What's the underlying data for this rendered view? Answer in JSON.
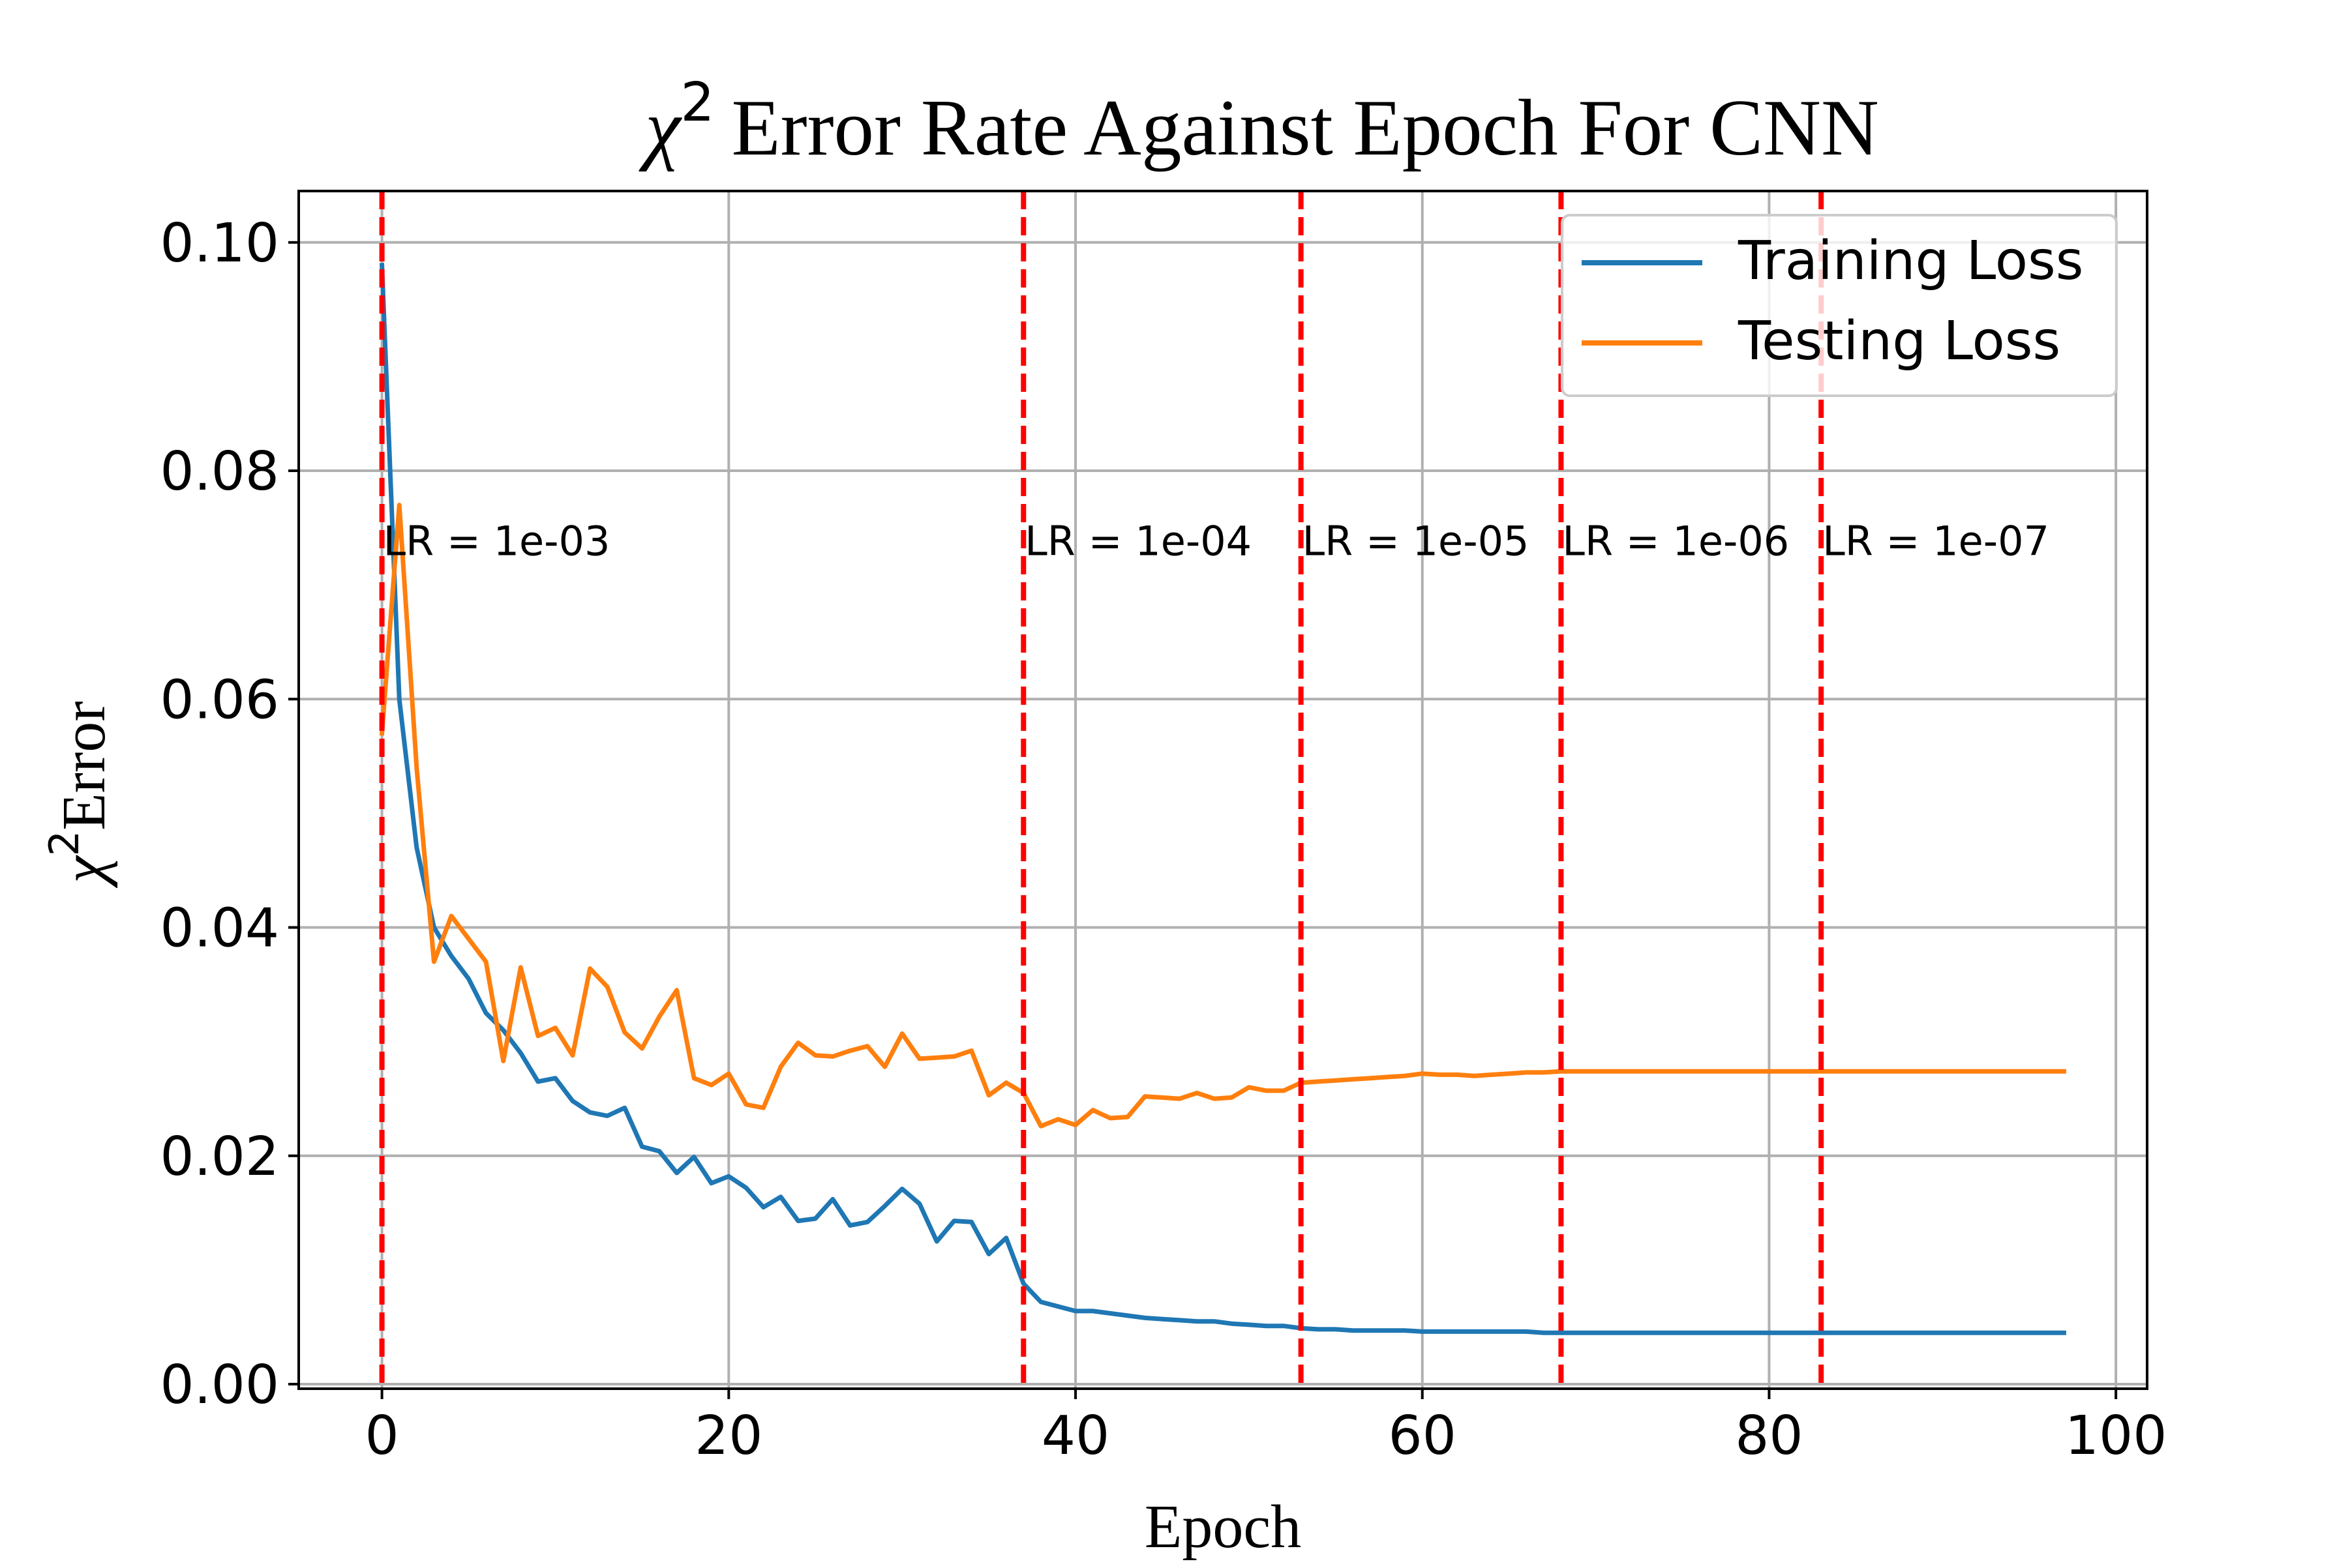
{
  "chart_data": {
    "type": "line",
    "title_symbol": "χ",
    "title_superscript": "2",
    "title_text": "Error Rate Against Epoch For CNN",
    "xlabel": "Epoch",
    "ylabel_symbol": "χ",
    "ylabel_superscript": "2",
    "ylabel_text": "Error",
    "xlim": [
      -4.8,
      101.8
    ],
    "ylim": [
      -0.0004,
      0.1045
    ],
    "xticks": [
      0,
      20,
      40,
      60,
      80,
      100
    ],
    "xtick_labels": [
      "0",
      "20",
      "40",
      "60",
      "80",
      "100"
    ],
    "yticks": [
      0.0,
      0.02,
      0.04,
      0.06,
      0.08,
      0.1
    ],
    "ytick_labels": [
      "0.00",
      "0.02",
      "0.04",
      "0.06",
      "0.08",
      "0.10"
    ],
    "grid": true,
    "legend_position": "upper right",
    "x": [
      0,
      1,
      2,
      3,
      4,
      5,
      6,
      7,
      8,
      9,
      10,
      11,
      12,
      13,
      14,
      15,
      16,
      17,
      18,
      19,
      20,
      21,
      22,
      23,
      24,
      25,
      26,
      27,
      28,
      29,
      30,
      31,
      32,
      33,
      34,
      35,
      36,
      37,
      38,
      39,
      40,
      41,
      42,
      43,
      44,
      45,
      46,
      47,
      48,
      49,
      50,
      51,
      52,
      53,
      54,
      55,
      56,
      57,
      58,
      59,
      60,
      61,
      62,
      63,
      64,
      65,
      66,
      67,
      68,
      69,
      70,
      71,
      72,
      73,
      74,
      75,
      76,
      77,
      78,
      79,
      80,
      81,
      82,
      83,
      84,
      85,
      86,
      87,
      88,
      89,
      90,
      91,
      92,
      93,
      94,
      95,
      96,
      97
    ],
    "series": [
      {
        "name": "Training Loss",
        "color": "#1f77b4",
        "values": [
          0.098,
          0.06,
          0.047,
          0.04,
          0.0375,
          0.0355,
          0.0325,
          0.031,
          0.029,
          0.0265,
          0.0268,
          0.0248,
          0.0238,
          0.0235,
          0.0242,
          0.0208,
          0.0204,
          0.0185,
          0.0199,
          0.0176,
          0.0182,
          0.0172,
          0.0155,
          0.0164,
          0.0143,
          0.0145,
          0.0162,
          0.0139,
          0.0142,
          0.0156,
          0.0171,
          0.0158,
          0.0125,
          0.0143,
          0.0142,
          0.0114,
          0.0128,
          0.0088,
          0.0072,
          0.0068,
          0.0064,
          0.0064,
          0.0062,
          0.006,
          0.0058,
          0.0057,
          0.0056,
          0.0055,
          0.0055,
          0.0053,
          0.0052,
          0.0051,
          0.0051,
          0.0049,
          0.0048,
          0.0048,
          0.0047,
          0.0047,
          0.0047,
          0.0047,
          0.0046,
          0.0046,
          0.0046,
          0.0046,
          0.0046,
          0.0046,
          0.0046,
          0.0045,
          0.0045,
          0.0045,
          0.0045,
          0.0045,
          0.0045,
          0.0045,
          0.0045,
          0.0045,
          0.0045,
          0.0045,
          0.0045,
          0.0045,
          0.0045,
          0.0045,
          0.0045,
          0.0045,
          0.0045,
          0.0045,
          0.0045,
          0.0045,
          0.0045,
          0.0045,
          0.0045,
          0.0045,
          0.0045,
          0.0045,
          0.0045,
          0.0045,
          0.0045,
          0.0045
        ]
      },
      {
        "name": "Testing Loss",
        "color": "#ff7f0e",
        "values": [
          0.057,
          0.077,
          0.054,
          0.037,
          0.041,
          0.039,
          0.037,
          0.0283,
          0.0365,
          0.0305,
          0.0312,
          0.0288,
          0.0364,
          0.0348,
          0.0308,
          0.0294,
          0.0322,
          0.0345,
          0.0268,
          0.0262,
          0.0272,
          0.0245,
          0.0242,
          0.0278,
          0.0299,
          0.0288,
          0.0287,
          0.0292,
          0.0296,
          0.0278,
          0.0307,
          0.0285,
          0.0286,
          0.0287,
          0.0292,
          0.0253,
          0.0264,
          0.0255,
          0.0226,
          0.0232,
          0.0227,
          0.024,
          0.0233,
          0.0234,
          0.0252,
          0.0251,
          0.025,
          0.0255,
          0.025,
          0.0251,
          0.026,
          0.0257,
          0.0257,
          0.0264,
          0.0265,
          0.0266,
          0.0267,
          0.0268,
          0.0269,
          0.027,
          0.0272,
          0.0271,
          0.0271,
          0.027,
          0.0271,
          0.0272,
          0.0273,
          0.0273,
          0.0274,
          0.0274,
          0.0274,
          0.0274,
          0.0274,
          0.0274,
          0.0274,
          0.0274,
          0.0274,
          0.0274,
          0.0274,
          0.0274,
          0.0274,
          0.0274,
          0.0274,
          0.0274,
          0.0274,
          0.0274,
          0.0274,
          0.0274,
          0.0274,
          0.0274,
          0.0274,
          0.0274,
          0.0274,
          0.0274,
          0.0274,
          0.0274,
          0.0274,
          0.0274
        ]
      }
    ],
    "vlines": {
      "color": "#ff0000",
      "positions": [
        0,
        37,
        53,
        68,
        83
      ],
      "labels": [
        "LR = 1e-03",
        "LR = 1e-04",
        "LR = 1e-05",
        "LR = 1e-06",
        "LR = 1e-07"
      ],
      "label_y": 0.0742
    }
  }
}
